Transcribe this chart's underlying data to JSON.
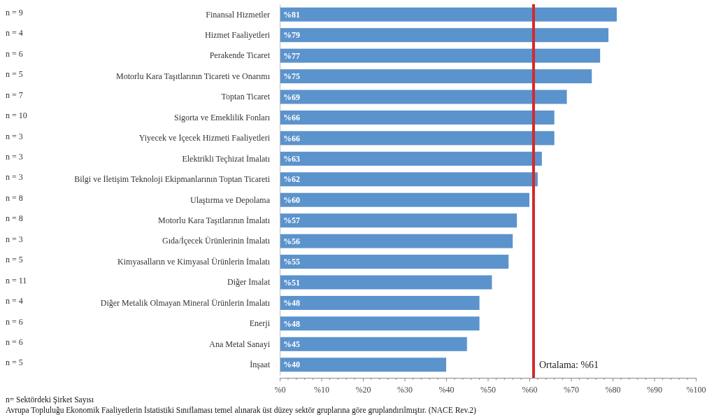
{
  "chart_data": {
    "type": "bar",
    "orientation": "horizontal",
    "categories": [
      "Finansal Hizmetler",
      "Hizmet Faaliyetleri",
      "Perakende Ticaret",
      "Motorlu Kara Taşıtlarının Ticareti ve Onarımı",
      "Toptan Ticaret",
      "Sigorta ve Emeklilik Fonları",
      "Yiyecek ve İçecek Hizmeti Faaliyetleri",
      "Elektrikli Teçhizat İmalatı",
      "Bilgi ve İletişim Teknoloji Ekipmanlarının Toptan Ticareti",
      "Ulaştırma ve Depolama",
      "Motorlu Kara Taşıtlarının İmalatı",
      "Gıda/İçecek Ürünlerinin İmalatı",
      "Kimyasalların ve Kimyasal Ürünlerin İmalatı",
      "Diğer İmalat",
      "Diğer Metalik Olmayan Mineral Ürünlerin İmalatı",
      "Enerji",
      "Ana Metal Sanayi",
      "İnşaat"
    ],
    "values": [
      81,
      79,
      77,
      75,
      69,
      66,
      66,
      63,
      62,
      60,
      57,
      56,
      55,
      51,
      48,
      48,
      45,
      40
    ],
    "value_labels": [
      "%81",
      "%79",
      "%77",
      "%75",
      "%69",
      "%66",
      "%66",
      "%63",
      "%62",
      "%60",
      "%57",
      "%56",
      "%55",
      "%51",
      "%48",
      "%48",
      "%45",
      "%40"
    ],
    "color": "#5b93cc",
    "xlim": [
      0,
      100
    ],
    "xticks": [
      {
        "value": 0,
        "label": "%0"
      },
      {
        "value": 10,
        "label": "%10"
      },
      {
        "value": 20,
        "label": "%20"
      },
      {
        "value": 30,
        "label": "%30"
      },
      {
        "value": 40,
        "label": "%40"
      },
      {
        "value": 50,
        "label": "%50"
      },
      {
        "value": 60,
        "label": "%60"
      },
      {
        "value": 70,
        "label": "%70"
      },
      {
        "value": 80,
        "label": "%80"
      },
      {
        "value": 90,
        "label": "%90"
      },
      {
        "value": 100,
        "label": "%100"
      }
    ],
    "ref_lines": [
      {
        "axis": "x",
        "value": 61,
        "label": "Ortalama: %61",
        "color": "#d22b2b"
      }
    ],
    "annotations": [
      "n = 9",
      "n = 4",
      "n = 6",
      "n = 5",
      "n = 7",
      "n = 10",
      "n = 3",
      "n = 3",
      "n = 3",
      "n = 8",
      "n = 8",
      "n = 3",
      "n = 5",
      "n = 11",
      "n = 4",
      "n = 6",
      "n = 6",
      "n = 5",
      "n= Sektördeki Şirket Sayısı",
      "Avrupa Topluluğu Ekonomik Faaliyetlerin İstatistiki Sınıflaması temel alınarak üst düzey sektör gruplarına göre gruplandırılmıştır. (NACE Rev.2)"
    ]
  }
}
